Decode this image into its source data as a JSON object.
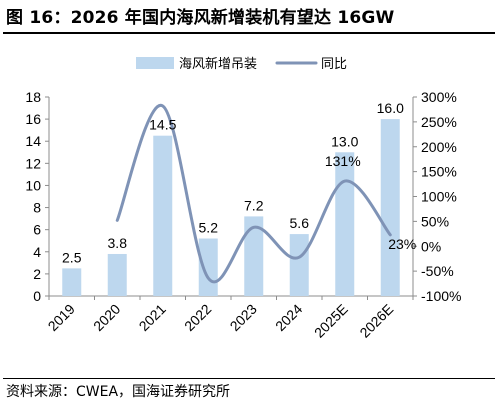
{
  "title": "图 16：2026 年国内海风新增装机有望达 16GW",
  "source": "资料来源：CWEA，国海证券研究所",
  "chart_data": {
    "type": "bar",
    "categories": [
      "2019",
      "2020",
      "2021",
      "2022",
      "2023",
      "2024",
      "2025E",
      "2026E"
    ],
    "series": [
      {
        "name": "海风新增吊装",
        "type": "bar",
        "axis": "left",
        "color": "#bdd7ee",
        "values": [
          2.5,
          3.8,
          14.5,
          5.2,
          7.2,
          5.6,
          13.0,
          16.0
        ],
        "labels": [
          "2.5",
          "3.8",
          "14.5",
          "5.2",
          "7.2",
          "5.6",
          "13.0",
          "16.0"
        ]
      },
      {
        "name": "同比",
        "type": "line",
        "axis": "right",
        "color": "#7f93b6",
        "x": [
          "2020",
          "2021",
          "2022",
          "2023",
          "2024",
          "2025E",
          "2026E"
        ],
        "values": [
          52,
          282,
          -64,
          38,
          -22,
          131,
          23
        ],
        "labels": [
          "",
          "",
          "",
          "",
          "",
          "131%",
          "23%"
        ]
      }
    ],
    "y_left": {
      "min": 0,
      "max": 18,
      "step": 2,
      "ticks": [
        "0",
        "2",
        "4",
        "6",
        "8",
        "10",
        "12",
        "14",
        "16",
        "18"
      ]
    },
    "y_right": {
      "min": -100,
      "max": 300,
      "step": 50,
      "ticks": [
        "-100%",
        "-50%",
        "0%",
        "50%",
        "100%",
        "150%",
        "200%",
        "250%",
        "300%"
      ]
    },
    "legend": {
      "position": "top"
    },
    "grid": false
  }
}
